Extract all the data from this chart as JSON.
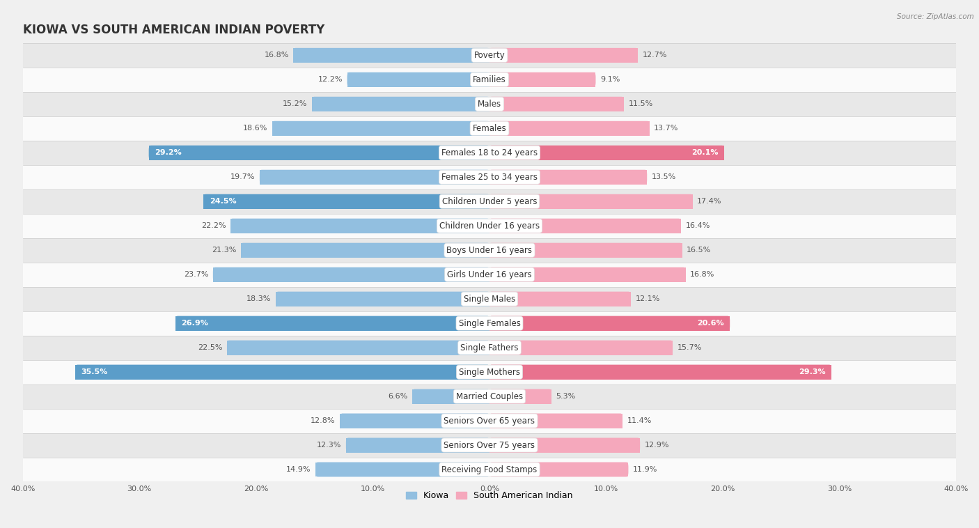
{
  "title": "KIOWA VS SOUTH AMERICAN INDIAN POVERTY",
  "source": "Source: ZipAtlas.com",
  "categories": [
    "Poverty",
    "Families",
    "Males",
    "Females",
    "Females 18 to 24 years",
    "Females 25 to 34 years",
    "Children Under 5 years",
    "Children Under 16 years",
    "Boys Under 16 years",
    "Girls Under 16 years",
    "Single Males",
    "Single Females",
    "Single Fathers",
    "Single Mothers",
    "Married Couples",
    "Seniors Over 65 years",
    "Seniors Over 75 years",
    "Receiving Food Stamps"
  ],
  "kiowa_values": [
    16.8,
    12.2,
    15.2,
    18.6,
    29.2,
    19.7,
    24.5,
    22.2,
    21.3,
    23.7,
    18.3,
    26.9,
    22.5,
    35.5,
    6.6,
    12.8,
    12.3,
    14.9
  ],
  "south_american_values": [
    12.7,
    9.1,
    11.5,
    13.7,
    20.1,
    13.5,
    17.4,
    16.4,
    16.5,
    16.8,
    12.1,
    20.6,
    15.7,
    29.3,
    5.3,
    11.4,
    12.9,
    11.9
  ],
  "kiowa_color": "#92bfe0",
  "south_american_color": "#f5a8bc",
  "kiowa_highlight_indices": [
    4,
    6,
    11,
    13
  ],
  "south_american_highlight_indices": [
    4,
    11,
    13
  ],
  "kiowa_highlight_color": "#5b9dc9",
  "south_american_highlight_color": "#e8728e",
  "background_color": "#f0f0f0",
  "row_light": "#fafafa",
  "row_dark": "#e8e8e8",
  "xlim": 40.0,
  "title_fontsize": 12,
  "label_fontsize": 8.5,
  "value_fontsize": 8,
  "bar_height": 0.6,
  "legend_kiowa": "Kiowa",
  "legend_south_american": "South American Indian"
}
